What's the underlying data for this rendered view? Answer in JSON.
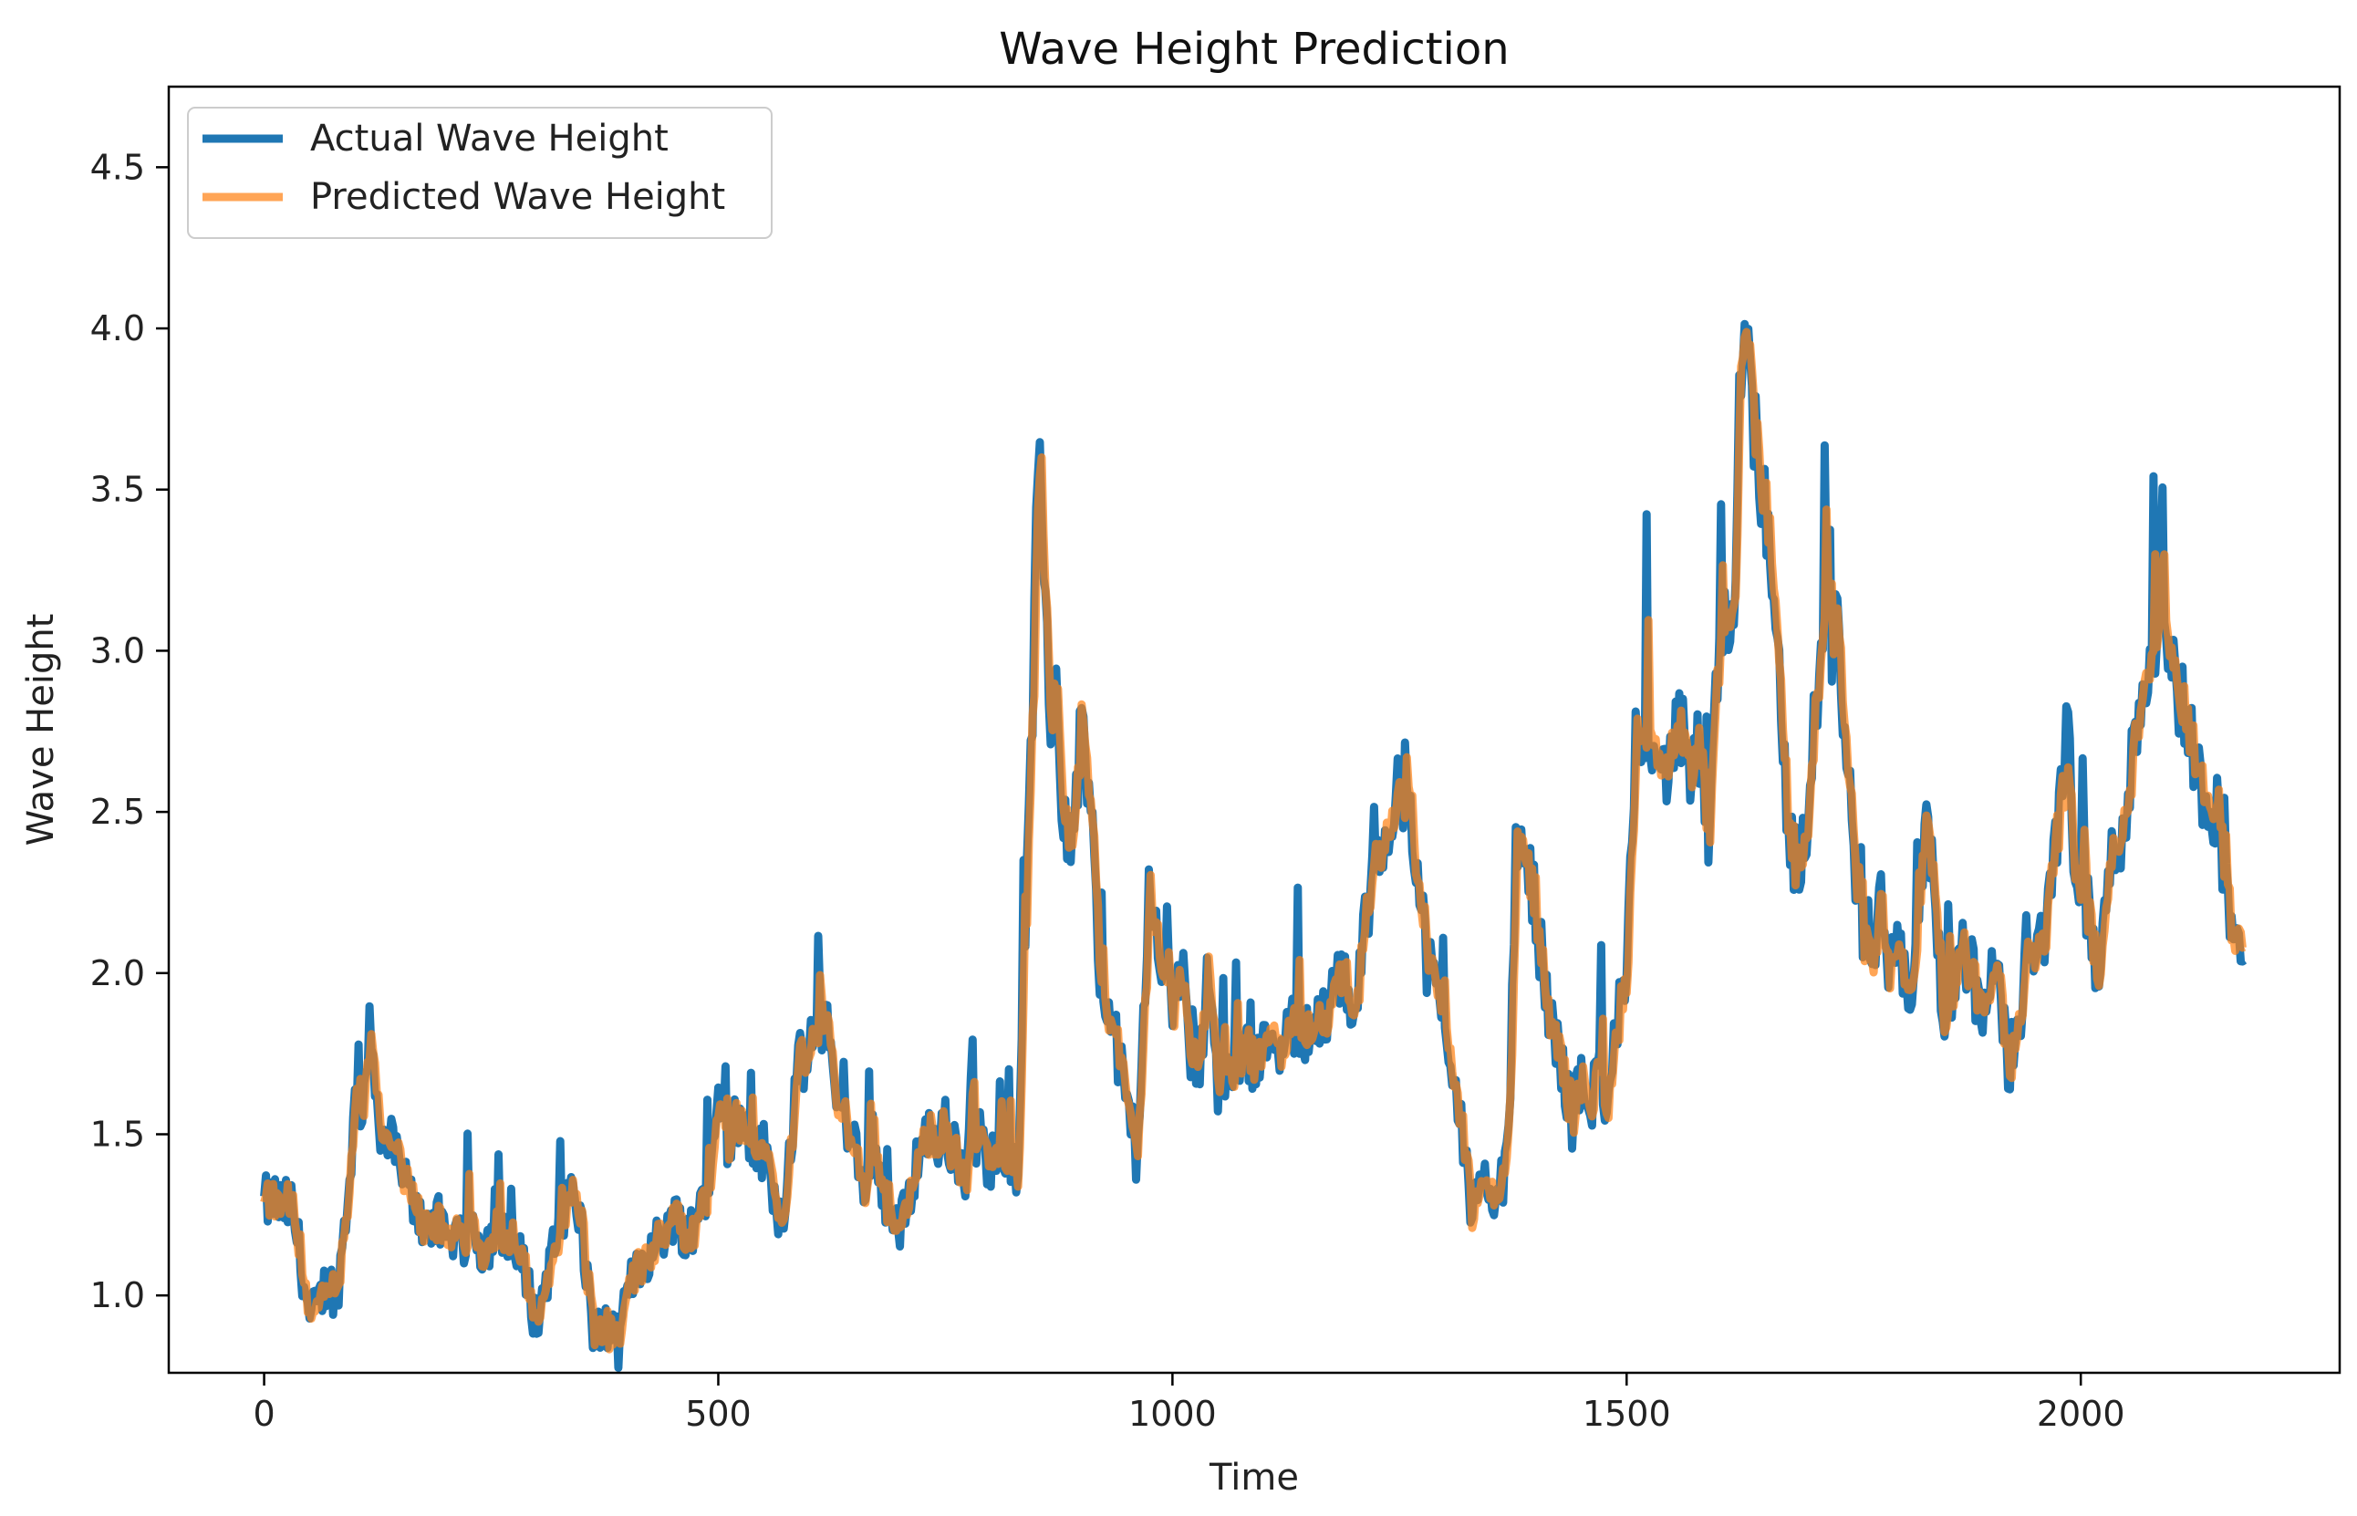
{
  "chart_data": {
    "type": "line",
    "title": "Wave Height Prediction",
    "xlabel": "Time",
    "ylabel": "Wave Height",
    "xlim": [
      -105,
      2285
    ],
    "ylim": [
      0.76,
      4.75
    ],
    "xticks": [
      0,
      500,
      1000,
      1500,
      2000
    ],
    "xtick_labels": [
      "0",
      "500",
      "1000",
      "1500",
      "2000"
    ],
    "yticks": [
      1.0,
      1.5,
      2.0,
      2.5,
      3.0,
      3.5,
      4.0,
      4.5
    ],
    "ytick_labels": [
      "1.0",
      "1.5",
      "2.0",
      "2.5",
      "3.0",
      "3.5",
      "4.0",
      "4.5"
    ],
    "grid": false,
    "legend_position": "top-left",
    "series_colors": {
      "actual": "#1f77b4",
      "predicted": "#ff7f0e"
    },
    "anchor_points": [
      [
        0,
        1.28
      ],
      [
        10,
        1.3
      ],
      [
        20,
        1.27
      ],
      [
        30,
        1.28
      ],
      [
        40,
        1.12
      ],
      [
        50,
        0.92
      ],
      [
        60,
        0.97
      ],
      [
        70,
        1.05
      ],
      [
        80,
        1.0
      ],
      [
        90,
        1.25
      ],
      [
        100,
        1.58
      ],
      [
        110,
        1.62
      ],
      [
        115,
        1.82
      ],
      [
        120,
        1.7
      ],
      [
        130,
        1.5
      ],
      [
        140,
        1.45
      ],
      [
        150,
        1.4
      ],
      [
        160,
        1.3
      ],
      [
        170,
        1.25
      ],
      [
        180,
        1.22
      ],
      [
        190,
        1.24
      ],
      [
        200,
        1.15
      ],
      [
        210,
        1.2
      ],
      [
        220,
        1.18
      ],
      [
        230,
        1.2
      ],
      [
        240,
        1.15
      ],
      [
        250,
        1.18
      ],
      [
        260,
        1.2
      ],
      [
        270,
        1.13
      ],
      [
        280,
        1.12
      ],
      [
        290,
        1.05
      ],
      [
        300,
        0.9
      ],
      [
        310,
        1.05
      ],
      [
        320,
        1.15
      ],
      [
        330,
        1.25
      ],
      [
        340,
        1.33
      ],
      [
        350,
        1.2
      ],
      [
        360,
        0.92
      ],
      [
        370,
        0.88
      ],
      [
        380,
        0.9
      ],
      [
        390,
        0.85
      ],
      [
        400,
        1.0
      ],
      [
        410,
        1.1
      ],
      [
        420,
        1.12
      ],
      [
        430,
        1.15
      ],
      [
        440,
        1.2
      ],
      [
        450,
        1.25
      ],
      [
        460,
        1.22
      ],
      [
        470,
        1.15
      ],
      [
        480,
        1.3
      ],
      [
        490,
        1.35
      ],
      [
        500,
        1.6
      ],
      [
        510,
        1.5
      ],
      [
        520,
        1.55
      ],
      [
        530,
        1.48
      ],
      [
        540,
        1.45
      ],
      [
        550,
        1.45
      ],
      [
        560,
        1.35
      ],
      [
        570,
        1.22
      ],
      [
        580,
        1.5
      ],
      [
        590,
        1.72
      ],
      [
        600,
        1.75
      ],
      [
        610,
        1.82
      ],
      [
        620,
        1.9
      ],
      [
        630,
        1.55
      ],
      [
        640,
        1.5
      ],
      [
        650,
        1.45
      ],
      [
        660,
        1.3
      ],
      [
        670,
        1.5
      ],
      [
        680,
        1.35
      ],
      [
        690,
        1.25
      ],
      [
        700,
        1.2
      ],
      [
        710,
        1.3
      ],
      [
        720,
        1.45
      ],
      [
        730,
        1.5
      ],
      [
        740,
        1.48
      ],
      [
        750,
        1.52
      ],
      [
        760,
        1.42
      ],
      [
        770,
        1.35
      ],
      [
        780,
        1.5
      ],
      [
        790,
        1.48
      ],
      [
        800,
        1.4
      ],
      [
        810,
        1.5
      ],
      [
        820,
        1.45
      ],
      [
        830,
        1.4
      ],
      [
        835,
        1.9
      ],
      [
        840,
        2.3
      ],
      [
        845,
        2.7
      ],
      [
        850,
        3.3
      ],
      [
        855,
        3.55
      ],
      [
        860,
        3.2
      ],
      [
        865,
        2.8
      ],
      [
        870,
        2.9
      ],
      [
        880,
        2.5
      ],
      [
        890,
        2.4
      ],
      [
        900,
        2.8
      ],
      [
        910,
        2.5
      ],
      [
        920,
        2.0
      ],
      [
        930,
        1.85
      ],
      [
        940,
        1.75
      ],
      [
        950,
        1.6
      ],
      [
        960,
        1.45
      ],
      [
        970,
        1.9
      ],
      [
        975,
        2.35
      ],
      [
        980,
        2.1
      ],
      [
        990,
        2.05
      ],
      [
        1000,
        1.85
      ],
      [
        1010,
        2.05
      ],
      [
        1020,
        1.7
      ],
      [
        1030,
        1.75
      ],
      [
        1040,
        2.0
      ],
      [
        1050,
        1.65
      ],
      [
        1060,
        1.72
      ],
      [
        1070,
        1.7
      ],
      [
        1080,
        1.8
      ],
      [
        1090,
        1.72
      ],
      [
        1100,
        1.75
      ],
      [
        1110,
        1.85
      ],
      [
        1120,
        1.78
      ],
      [
        1130,
        1.82
      ],
      [
        1140,
        1.85
      ],
      [
        1150,
        1.8
      ],
      [
        1160,
        1.9
      ],
      [
        1170,
        1.82
      ],
      [
        1180,
        1.95
      ],
      [
        1190,
        2.0
      ],
      [
        1200,
        1.85
      ],
      [
        1210,
        2.1
      ],
      [
        1220,
        2.3
      ],
      [
        1230,
        2.4
      ],
      [
        1240,
        2.5
      ],
      [
        1250,
        2.55
      ],
      [
        1260,
        2.6
      ],
      [
        1270,
        2.3
      ],
      [
        1280,
        2.05
      ],
      [
        1290,
        1.95
      ],
      [
        1300,
        1.85
      ],
      [
        1310,
        1.7
      ],
      [
        1320,
        1.5
      ],
      [
        1330,
        1.25
      ],
      [
        1340,
        1.3
      ],
      [
        1350,
        1.35
      ],
      [
        1360,
        1.3
      ],
      [
        1370,
        1.5
      ],
      [
        1380,
        2.4
      ],
      [
        1390,
        2.35
      ],
      [
        1400,
        2.2
      ],
      [
        1410,
        1.95
      ],
      [
        1420,
        1.8
      ],
      [
        1430,
        1.7
      ],
      [
        1440,
        1.55
      ],
      [
        1450,
        1.65
      ],
      [
        1460,
        1.6
      ],
      [
        1470,
        1.7
      ],
      [
        1480,
        1.6
      ],
      [
        1490,
        1.85
      ],
      [
        1500,
        1.95
      ],
      [
        1510,
        2.7
      ],
      [
        1520,
        2.8
      ],
      [
        1530,
        2.75
      ],
      [
        1540,
        2.6
      ],
      [
        1550,
        2.7
      ],
      [
        1560,
        2.75
      ],
      [
        1570,
        2.6
      ],
      [
        1580,
        2.7
      ],
      [
        1590,
        2.4
      ],
      [
        1600,
        2.9
      ],
      [
        1610,
        3.1
      ],
      [
        1620,
        3.2
      ],
      [
        1625,
        3.9
      ],
      [
        1630,
        4.1
      ],
      [
        1640,
        3.7
      ],
      [
        1650,
        3.5
      ],
      [
        1660,
        3.3
      ],
      [
        1670,
        2.8
      ],
      [
        1680,
        2.4
      ],
      [
        1690,
        2.3
      ],
      [
        1700,
        2.5
      ],
      [
        1710,
        2.9
      ],
      [
        1720,
        3.2
      ],
      [
        1725,
        3.0
      ],
      [
        1730,
        3.1
      ],
      [
        1740,
        2.8
      ],
      [
        1750,
        2.4
      ],
      [
        1760,
        2.1
      ],
      [
        1770,
        2.0
      ],
      [
        1780,
        2.2
      ],
      [
        1790,
        2.0
      ],
      [
        1800,
        2.05
      ],
      [
        1810,
        1.9
      ],
      [
        1820,
        2.1
      ],
      [
        1830,
        2.5
      ],
      [
        1840,
        2.2
      ],
      [
        1850,
        1.85
      ],
      [
        1860,
        2.0
      ],
      [
        1870,
        2.1
      ],
      [
        1880,
        2.0
      ],
      [
        1890,
        1.85
      ],
      [
        1900,
        1.95
      ],
      [
        1910,
        2.0
      ],
      [
        1920,
        1.7
      ],
      [
        1930,
        1.85
      ],
      [
        1940,
        2.0
      ],
      [
        1950,
        2.05
      ],
      [
        1960,
        2.1
      ],
      [
        1970,
        2.4
      ],
      [
        1980,
        2.55
      ],
      [
        1990,
        2.35
      ],
      [
        2000,
        2.3
      ],
      [
        2010,
        2.15
      ],
      [
        2020,
        1.95
      ],
      [
        2030,
        2.3
      ],
      [
        2040,
        2.4
      ],
      [
        2050,
        2.5
      ],
      [
        2060,
        2.75
      ],
      [
        2070,
        2.9
      ],
      [
        2080,
        3.05
      ],
      [
        2090,
        3.15
      ],
      [
        2100,
        2.95
      ],
      [
        2110,
        2.85
      ],
      [
        2120,
        2.75
      ],
      [
        2130,
        2.6
      ],
      [
        2140,
        2.55
      ],
      [
        2150,
        2.5
      ],
      [
        2160,
        2.3
      ],
      [
        2170,
        2.05
      ],
      [
        2180,
        2.1
      ]
    ],
    "series": [
      {
        "name": "Actual Wave Height",
        "key": "actual",
        "noise": 0.085
      },
      {
        "name": "Predicted Wave Height",
        "key": "predicted",
        "noise": 0.035
      }
    ]
  }
}
